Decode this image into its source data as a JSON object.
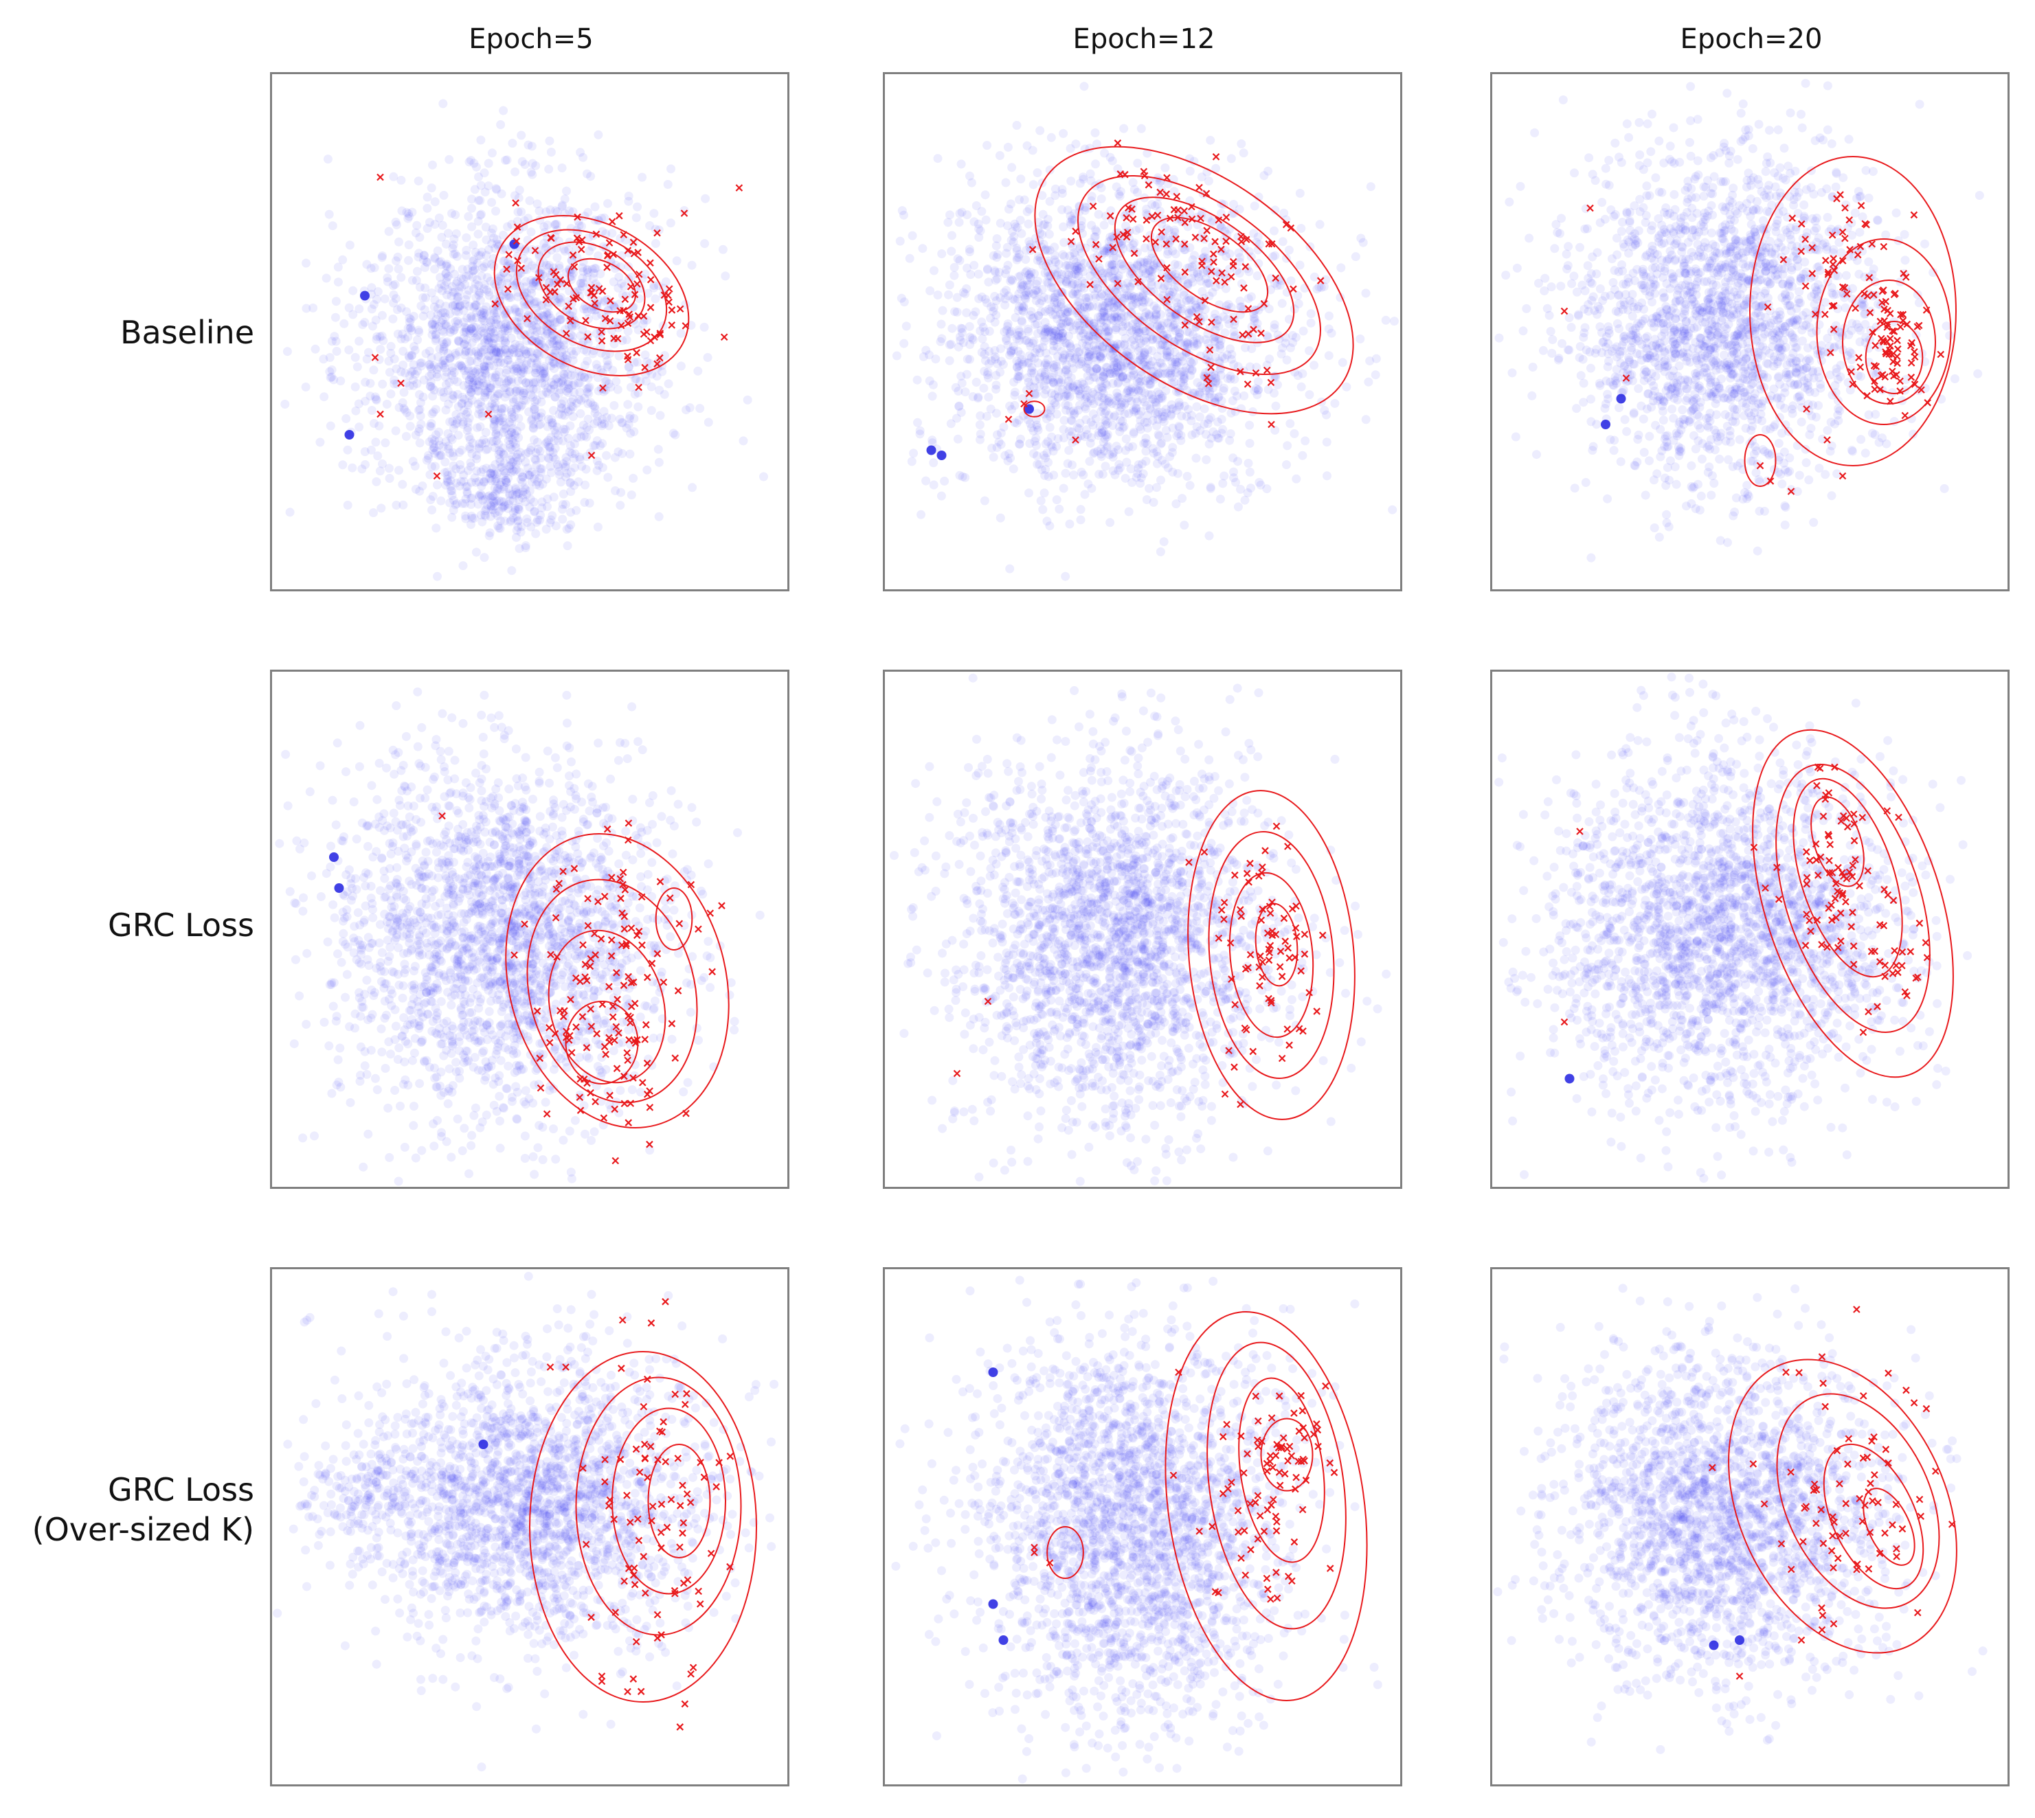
{
  "chart_data": {
    "type": "scatter",
    "description_free": true,
    "column_titles": [
      "Epoch=5",
      "Epoch=12",
      "Epoch=20"
    ],
    "row_labels": [
      [
        "Baseline"
      ],
      [
        "GRC Loss"
      ],
      [
        "GRC Loss",
        "(Over-sized K)"
      ]
    ],
    "axes": {
      "xlim": [
        0,
        1
      ],
      "ylim": [
        0,
        1
      ],
      "ticks": false,
      "grid": false
    },
    "series_styles": [
      {
        "name": "majority",
        "marker": "circle",
        "color": "#3b3bf0",
        "alpha": 0.09
      },
      {
        "name": "minority",
        "marker": "x",
        "color": "#e8191c",
        "contour_color": "#e8191c"
      }
    ],
    "panels": [
      {
        "row": 0,
        "col": 0,
        "blue": {
          "clouds": [
            {
              "cx": 0.46,
              "cy": 0.53,
              "sx": 0.145,
              "sy": 0.155,
              "n": 1900
            },
            {
              "cx": 0.45,
              "cy": 0.8,
              "sx": 0.07,
              "sy": 0.05,
              "n": 220
            }
          ],
          "dark": [
            [
              0.18,
              0.43
            ],
            [
              0.15,
              0.7
            ],
            [
              0.47,
              0.33
            ]
          ]
        },
        "red": {
          "clusters": [
            {
              "cx": 0.63,
              "cy": 0.38,
              "sx": 0.1,
              "sy": 0.07,
              "n": 75
            },
            {
              "cx": 0.73,
              "cy": 0.5,
              "sx": 0.05,
              "sy": 0.05,
              "n": 30
            }
          ],
          "outliers": [
            [
              0.21,
              0.2
            ],
            [
              0.2,
              0.55
            ],
            [
              0.21,
              0.66
            ],
            [
              0.25,
              0.6
            ],
            [
              0.42,
              0.66
            ],
            [
              0.32,
              0.78
            ],
            [
              0.62,
              0.74
            ],
            [
              0.8,
              0.27
            ]
          ]
        },
        "contours": [
          {
            "cx": 0.62,
            "cy": 0.43,
            "rx": 0.2,
            "ry": 0.14,
            "rot": 28
          },
          {
            "cx": 0.62,
            "cy": 0.42,
            "rx": 0.155,
            "ry": 0.105,
            "rot": 28
          },
          {
            "cx": 0.62,
            "cy": 0.41,
            "rx": 0.11,
            "ry": 0.075,
            "rot": 28
          },
          {
            "cx": 0.64,
            "cy": 0.41,
            "rx": 0.07,
            "ry": 0.045,
            "rot": 28
          }
        ]
      },
      {
        "row": 0,
        "col": 1,
        "blue": {
          "clouds": [
            {
              "cx": 0.45,
              "cy": 0.5,
              "sx": 0.17,
              "sy": 0.15,
              "n": 2300
            }
          ],
          "dark": [
            [
              0.09,
              0.73
            ],
            [
              0.11,
              0.74
            ],
            [
              0.28,
              0.65
            ]
          ]
        },
        "red": {
          "clusters": [
            {
              "cx": 0.55,
              "cy": 0.3,
              "sx": 0.1,
              "sy": 0.06,
              "n": 65
            },
            {
              "cx": 0.68,
              "cy": 0.44,
              "sx": 0.06,
              "sy": 0.08,
              "n": 40
            }
          ],
          "outliers": [
            [
              0.72,
              0.58
            ],
            [
              0.75,
              0.68
            ],
            [
              0.37,
              0.71
            ],
            [
              0.27,
              0.64
            ],
            [
              0.24,
              0.67
            ],
            [
              0.28,
              0.62
            ],
            [
              0.61,
              0.22
            ]
          ]
        },
        "contours": [
          {
            "cx": 0.6,
            "cy": 0.4,
            "rx": 0.35,
            "ry": 0.2,
            "rot": 35
          },
          {
            "cx": 0.61,
            "cy": 0.39,
            "rx": 0.27,
            "ry": 0.14,
            "rot": 35
          },
          {
            "cx": 0.62,
            "cy": 0.38,
            "rx": 0.2,
            "ry": 0.1,
            "rot": 35
          },
          {
            "cx": 0.63,
            "cy": 0.37,
            "rx": 0.13,
            "ry": 0.065,
            "rot": 35
          },
          {
            "cx": 0.29,
            "cy": 0.65,
            "rx": 0.02,
            "ry": 0.015,
            "rot": 0
          }
        ]
      },
      {
        "row": 0,
        "col": 2,
        "blue": {
          "clouds": [
            {
              "cx": 0.45,
              "cy": 0.47,
              "sx": 0.15,
              "sy": 0.16,
              "n": 2000
            }
          ],
          "dark": [
            [
              0.22,
              0.68
            ],
            [
              0.25,
              0.63
            ]
          ]
        },
        "red": {
          "clusters": [
            {
              "cx": 0.77,
              "cy": 0.52,
              "sx": 0.04,
              "sy": 0.07,
              "n": 80
            },
            {
              "cx": 0.68,
              "cy": 0.35,
              "sx": 0.06,
              "sy": 0.08,
              "n": 40
            }
          ],
          "outliers": [
            [
              0.19,
              0.26
            ],
            [
              0.14,
              0.46
            ],
            [
              0.26,
              0.59
            ],
            [
              0.52,
              0.76
            ],
            [
              0.54,
              0.79
            ],
            [
              0.58,
              0.81
            ],
            [
              0.68,
              0.78
            ],
            [
              0.65,
              0.71
            ],
            [
              0.61,
              0.65
            ]
          ]
        },
        "contours": [
          {
            "cx": 0.7,
            "cy": 0.46,
            "rx": 0.2,
            "ry": 0.3,
            "rot": 0
          },
          {
            "cx": 0.76,
            "cy": 0.5,
            "rx": 0.13,
            "ry": 0.18,
            "rot": 0
          },
          {
            "cx": 0.77,
            "cy": 0.52,
            "rx": 0.09,
            "ry": 0.12,
            "rot": 0
          },
          {
            "cx": 0.78,
            "cy": 0.55,
            "rx": 0.055,
            "ry": 0.07,
            "rot": 0
          },
          {
            "cx": 0.52,
            "cy": 0.75,
            "rx": 0.03,
            "ry": 0.05,
            "rot": 0
          }
        ]
      },
      {
        "row": 1,
        "col": 0,
        "blue": {
          "clouds": [
            {
              "cx": 0.45,
              "cy": 0.52,
              "sx": 0.16,
              "sy": 0.17,
              "n": 2200
            }
          ],
          "dark": [
            [
              0.12,
              0.36
            ],
            [
              0.13,
              0.42
            ]
          ]
        },
        "red": {
          "clusters": [
            {
              "cx": 0.67,
              "cy": 0.57,
              "sx": 0.09,
              "sy": 0.13,
              "n": 95
            },
            {
              "cx": 0.64,
              "cy": 0.75,
              "sx": 0.06,
              "sy": 0.06,
              "n": 40
            }
          ],
          "outliers": [
            [
              0.33,
              0.28
            ],
            [
              0.49,
              0.49
            ],
            [
              0.47,
              0.55
            ]
          ]
        },
        "contours": [
          {
            "cx": 0.67,
            "cy": 0.6,
            "rx": 0.21,
            "ry": 0.29,
            "rot": -15
          },
          {
            "cx": 0.66,
            "cy": 0.62,
            "rx": 0.16,
            "ry": 0.22,
            "rot": -15
          },
          {
            "cx": 0.65,
            "cy": 0.65,
            "rx": 0.11,
            "ry": 0.15,
            "rot": -15
          },
          {
            "cx": 0.64,
            "cy": 0.72,
            "rx": 0.07,
            "ry": 0.08,
            "rot": 0
          },
          {
            "cx": 0.78,
            "cy": 0.48,
            "rx": 0.035,
            "ry": 0.06,
            "rot": 0
          }
        ]
      },
      {
        "row": 1,
        "col": 1,
        "blue": {
          "clouds": [
            {
              "cx": 0.45,
              "cy": 0.52,
              "sx": 0.15,
              "sy": 0.18,
              "n": 2200
            }
          ],
          "dark": []
        },
        "red": {
          "clusters": [
            {
              "cx": 0.74,
              "cy": 0.55,
              "sx": 0.05,
              "sy": 0.11,
              "n": 70
            }
          ],
          "outliers": [
            [
              0.2,
              0.64
            ],
            [
              0.14,
              0.78
            ],
            [
              0.59,
              0.37
            ],
            [
              0.62,
              0.35
            ],
            [
              0.66,
              0.82
            ],
            [
              0.69,
              0.84
            ],
            [
              0.76,
              0.3
            ]
          ]
        },
        "contours": [
          {
            "cx": 0.75,
            "cy": 0.55,
            "rx": 0.16,
            "ry": 0.32,
            "rot": -5
          },
          {
            "cx": 0.75,
            "cy": 0.55,
            "rx": 0.12,
            "ry": 0.24,
            "rot": -5
          },
          {
            "cx": 0.75,
            "cy": 0.55,
            "rx": 0.08,
            "ry": 0.16,
            "rot": -5
          },
          {
            "cx": 0.76,
            "cy": 0.53,
            "rx": 0.04,
            "ry": 0.08,
            "rot": -5
          }
        ]
      },
      {
        "row": 1,
        "col": 2,
        "blue": {
          "clouds": [
            {
              "cx": 0.45,
              "cy": 0.5,
              "sx": 0.17,
              "sy": 0.17,
              "n": 2300
            }
          ],
          "dark": [
            [
              0.15,
              0.79
            ]
          ]
        },
        "red": {
          "clusters": [
            {
              "cx": 0.67,
              "cy": 0.37,
              "sx": 0.05,
              "sy": 0.1,
              "n": 70
            },
            {
              "cx": 0.77,
              "cy": 0.55,
              "sx": 0.04,
              "sy": 0.06,
              "n": 25
            }
          ],
          "outliers": [
            [
              0.17,
              0.31
            ],
            [
              0.53,
              0.42
            ],
            [
              0.14,
              0.68
            ],
            [
              0.73,
              0.66
            ],
            [
              0.72,
              0.7
            ]
          ]
        },
        "contours": [
          {
            "cx": 0.7,
            "cy": 0.45,
            "rx": 0.17,
            "ry": 0.35,
            "rot": -18
          },
          {
            "cx": 0.7,
            "cy": 0.44,
            "rx": 0.13,
            "ry": 0.27,
            "rot": -18
          },
          {
            "cx": 0.69,
            "cy": 0.4,
            "rx": 0.09,
            "ry": 0.2,
            "rot": -18
          },
          {
            "cx": 0.67,
            "cy": 0.33,
            "rx": 0.045,
            "ry": 0.09,
            "rot": -18
          }
        ]
      },
      {
        "row": 2,
        "col": 0,
        "blue": {
          "clouds": [
            {
              "cx": 0.5,
              "cy": 0.45,
              "sx": 0.17,
              "sy": 0.14,
              "n": 2000
            },
            {
              "cx": 0.18,
              "cy": 0.43,
              "sx": 0.06,
              "sy": 0.04,
              "n": 120
            }
          ],
          "dark": [
            [
              0.41,
              0.34
            ]
          ]
        },
        "red": {
          "clusters": [
            {
              "cx": 0.75,
              "cy": 0.47,
              "sx": 0.07,
              "sy": 0.15,
              "n": 80
            }
          ],
          "outliers": [
            [
              0.54,
              0.19
            ],
            [
              0.57,
              0.19
            ],
            [
              0.64,
              0.79
            ],
            [
              0.64,
              0.8
            ],
            [
              0.69,
              0.82
            ]
          ]
        },
        "contours": [
          {
            "cx": 0.72,
            "cy": 0.5,
            "rx": 0.22,
            "ry": 0.34,
            "rot": 0
          },
          {
            "cx": 0.75,
            "cy": 0.46,
            "rx": 0.16,
            "ry": 0.25,
            "rot": 0
          },
          {
            "cx": 0.77,
            "cy": 0.45,
            "rx": 0.11,
            "ry": 0.18,
            "rot": 0
          },
          {
            "cx": 0.79,
            "cy": 0.45,
            "rx": 0.06,
            "ry": 0.11,
            "rot": 0
          }
        ]
      },
      {
        "row": 2,
        "col": 1,
        "blue": {
          "clouds": [
            {
              "cx": 0.48,
              "cy": 0.5,
              "sx": 0.15,
              "sy": 0.19,
              "n": 2300
            }
          ],
          "dark": [
            [
              0.21,
              0.2
            ],
            [
              0.21,
              0.65
            ],
            [
              0.23,
              0.72
            ]
          ]
        },
        "red": {
          "clusters": [
            {
              "cx": 0.78,
              "cy": 0.35,
              "sx": 0.04,
              "sy": 0.05,
              "n": 45
            },
            {
              "cx": 0.72,
              "cy": 0.5,
              "sx": 0.05,
              "sy": 0.1,
              "n": 40
            }
          ],
          "outliers": [
            [
              0.29,
              0.54
            ],
            [
              0.29,
              0.55
            ],
            [
              0.32,
              0.57
            ],
            [
              0.57,
              0.2
            ],
            [
              0.56,
              0.4
            ]
          ]
        },
        "contours": [
          {
            "cx": 0.74,
            "cy": 0.46,
            "rx": 0.19,
            "ry": 0.38,
            "rot": -8
          },
          {
            "cx": 0.76,
            "cy": 0.42,
            "rx": 0.13,
            "ry": 0.28,
            "rot": -8
          },
          {
            "cx": 0.77,
            "cy": 0.39,
            "rx": 0.08,
            "ry": 0.18,
            "rot": -8
          },
          {
            "cx": 0.78,
            "cy": 0.36,
            "rx": 0.05,
            "ry": 0.07,
            "rot": 0
          },
          {
            "cx": 0.35,
            "cy": 0.55,
            "rx": 0.035,
            "ry": 0.05,
            "rot": 0
          }
        ]
      },
      {
        "row": 2,
        "col": 2,
        "blue": {
          "clouds": [
            {
              "cx": 0.45,
              "cy": 0.48,
              "sx": 0.16,
              "sy": 0.16,
              "n": 2100
            }
          ],
          "dark": [
            [
              0.43,
              0.73
            ],
            [
              0.48,
              0.72
            ]
          ]
        },
        "red": {
          "clusters": [
            {
              "cx": 0.71,
              "cy": 0.45,
              "sx": 0.08,
              "sy": 0.12,
              "n": 70
            }
          ],
          "outliers": [
            [
              0.57,
              0.2
            ],
            [
              0.48,
              0.79
            ],
            [
              0.64,
              0.17
            ],
            [
              0.6,
              0.72
            ],
            [
              0.64,
              0.7
            ]
          ]
        },
        "contours": [
          {
            "cx": 0.68,
            "cy": 0.46,
            "rx": 0.2,
            "ry": 0.3,
            "rot": -25
          },
          {
            "cx": 0.71,
            "cy": 0.45,
            "rx": 0.14,
            "ry": 0.22,
            "rot": -25
          },
          {
            "cx": 0.74,
            "cy": 0.48,
            "rx": 0.08,
            "ry": 0.15,
            "rot": -25
          },
          {
            "cx": 0.77,
            "cy": 0.5,
            "rx": 0.04,
            "ry": 0.08,
            "rot": -25
          }
        ]
      }
    ]
  }
}
